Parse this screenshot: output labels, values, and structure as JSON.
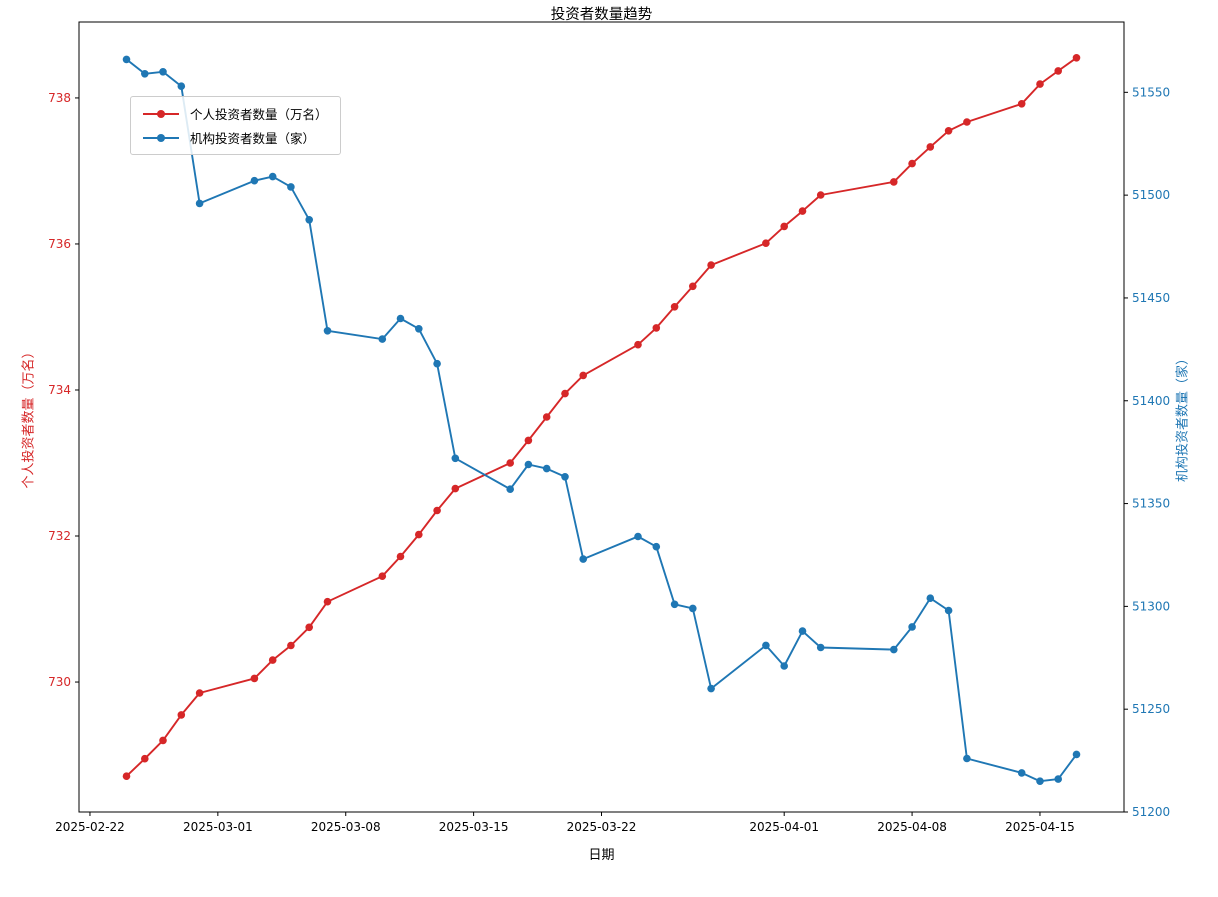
{
  "title": "投资者数量趋势",
  "chart_data": {
    "type": "line",
    "title": "投资者数量趋势",
    "xlabel": "日期",
    "grid": false,
    "legend_position": "upper left",
    "x": [
      "2025-02-24",
      "2025-02-25",
      "2025-02-26",
      "2025-02-27",
      "2025-02-28",
      "2025-03-03",
      "2025-03-04",
      "2025-03-05",
      "2025-03-06",
      "2025-03-07",
      "2025-03-10",
      "2025-03-11",
      "2025-03-12",
      "2025-03-13",
      "2025-03-14",
      "2025-03-17",
      "2025-03-18",
      "2025-03-19",
      "2025-03-20",
      "2025-03-21",
      "2025-03-24",
      "2025-03-25",
      "2025-03-26",
      "2025-03-27",
      "2025-03-28",
      "2025-03-31",
      "2025-04-01",
      "2025-04-02",
      "2025-04-03",
      "2025-04-07",
      "2025-04-08",
      "2025-04-09",
      "2025-04-10",
      "2025-04-11",
      "2025-04-14",
      "2025-04-15",
      "2025-04-16",
      "2025-04-17"
    ],
    "x_ticks": [
      "2025-02-22",
      "2025-03-01",
      "2025-03-08",
      "2025-03-15",
      "2025-03-22",
      "2025-04-01",
      "2025-04-08",
      "2025-04-15"
    ],
    "series": [
      {
        "name": "个人投资者数量（万名）",
        "axis": "left",
        "color": "#d62728",
        "values": [
          728.71,
          728.95,
          729.2,
          729.55,
          729.85,
          730.05,
          730.3,
          730.5,
          730.75,
          731.1,
          731.45,
          731.72,
          732.02,
          732.35,
          732.65,
          733.0,
          733.31,
          733.63,
          733.95,
          734.2,
          734.62,
          734.85,
          735.14,
          735.42,
          735.71,
          736.01,
          736.24,
          736.45,
          736.67,
          736.85,
          737.1,
          737.33,
          737.55,
          737.67,
          737.92,
          738.19,
          738.37,
          738.55
        ]
      },
      {
        "name": "机构投资者数量（家）",
        "axis": "right",
        "color": "#1f77b4",
        "values": [
          51566,
          51559,
          51560,
          51553,
          51496,
          51507,
          51509,
          51504,
          51488,
          51434,
          51430,
          51440,
          51435,
          51418,
          51372,
          51357,
          51369,
          51367,
          51363,
          51323,
          51334,
          51329,
          51301,
          51299,
          51260,
          51281,
          51271,
          51288,
          51280,
          51279,
          51290,
          51304,
          51298,
          51226,
          51219,
          51215,
          51216,
          51228
        ]
      }
    ],
    "left_axis": {
      "label": "个人投资者数量（万名）",
      "color": "#d62728",
      "ticks": [
        730,
        732,
        734,
        736,
        738
      ],
      "range": [
        728.22,
        739.04
      ]
    },
    "right_axis": {
      "label": "机构投资者数量（家）",
      "color": "#1f77b4",
      "ticks": [
        51200,
        51250,
        51300,
        51350,
        51400,
        51450,
        51500,
        51550
      ],
      "range": [
        51200,
        51584.2
      ]
    }
  }
}
